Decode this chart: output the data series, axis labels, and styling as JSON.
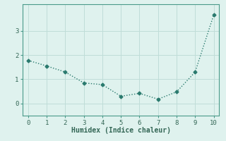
{
  "x": [
    0,
    1,
    2,
    3,
    4,
    5,
    6,
    7,
    8,
    9,
    10
  ],
  "y": [
    1.78,
    1.55,
    1.3,
    0.85,
    0.78,
    0.3,
    0.42,
    0.18,
    0.48,
    1.3,
    3.65
  ],
  "line_color": "#2a7a6e",
  "marker": "D",
  "marker_size": 2.5,
  "bg_color": "#dff2ee",
  "grid_color": "#c0ddd8",
  "xlabel": "Humidex (Indice chaleur)",
  "xlim": [
    -0.3,
    10.3
  ],
  "ylim": [
    -0.5,
    4.1
  ],
  "yticks": [
    0,
    1,
    2,
    3
  ],
  "xticks": [
    0,
    1,
    2,
    3,
    4,
    5,
    6,
    7,
    8,
    9,
    10
  ],
  "xlabel_fontsize": 7,
  "tick_fontsize": 6.5,
  "line_width": 1.0,
  "spine_color": "#4a9a8a",
  "tick_color": "#336655"
}
